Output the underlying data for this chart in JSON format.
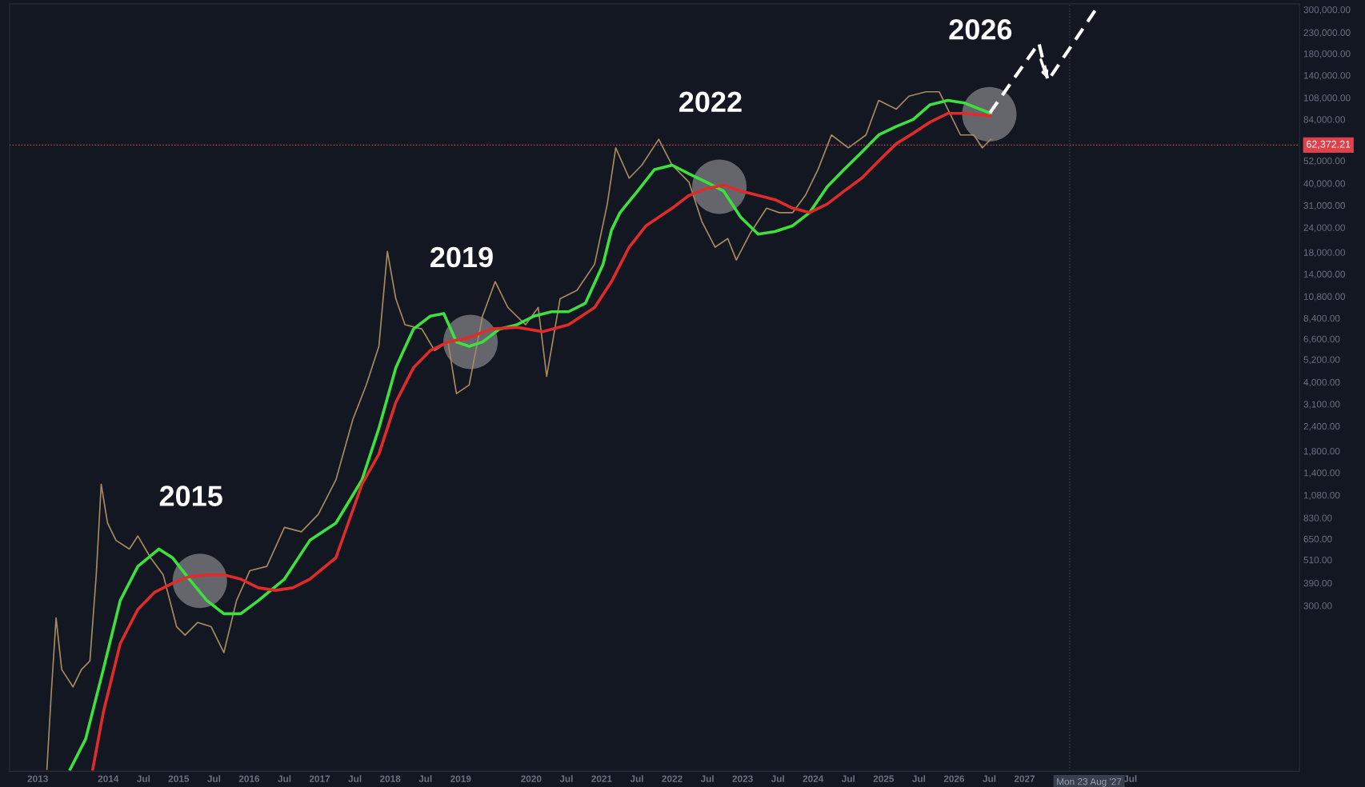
{
  "chart_data": {
    "type": "line",
    "log": "y",
    "grid": false,
    "legend": false,
    "xlim": [
      2012.6,
      2030.9
    ],
    "ylim": [
      44,
      320000
    ],
    "xticks": [
      2013,
      2014,
      {
        "value": 2014.5,
        "label": "Jul"
      },
      2015,
      {
        "value": 2015.5,
        "label": "Jul"
      },
      2016,
      {
        "value": 2016.5,
        "label": "Jul"
      },
      2017,
      {
        "value": 2017.5,
        "label": "Jul"
      },
      2018,
      {
        "value": 2018.5,
        "label": "Jul"
      },
      2019,
      2020,
      {
        "value": 2020.5,
        "label": "Jul"
      },
      2021,
      {
        "value": 2021.5,
        "label": "Jul"
      },
      2022,
      {
        "value": 2022.5,
        "label": "Jul"
      },
      2023,
      {
        "value": 2023.5,
        "label": "Jul"
      },
      2024,
      {
        "value": 2024.5,
        "label": "Jul"
      },
      2025,
      {
        "value": 2025.5,
        "label": "Jul"
      },
      2026,
      {
        "value": 2026.5,
        "label": "Jul"
      },
      2027,
      {
        "value": 2028.5,
        "label": "Jul"
      }
    ],
    "yticks": [
      {
        "value": 300,
        "label": "300.00"
      },
      {
        "value": 390,
        "label": "390.00"
      },
      {
        "value": 510,
        "label": "510.00"
      },
      {
        "value": 650,
        "label": "650.00"
      },
      {
        "value": 830,
        "label": "830.00"
      },
      {
        "value": 1080,
        "label": "1,080.00"
      },
      {
        "value": 1400,
        "label": "1,400.00"
      },
      {
        "value": 1800,
        "label": "1,800.00"
      },
      {
        "value": 2400,
        "label": "2,400.00"
      },
      {
        "value": 3100,
        "label": "3,100.00"
      },
      {
        "value": 4000,
        "label": "4,000.00"
      },
      {
        "value": 5200,
        "label": "5,200.00"
      },
      {
        "value": 6600,
        "label": "6,600.00"
      },
      {
        "value": 8400,
        "label": "8,400.00"
      },
      {
        "value": 10800,
        "label": "10,800.00"
      },
      {
        "value": 14000,
        "label": "14,000.00"
      },
      {
        "value": 18000,
        "label": "18,000.00"
      },
      {
        "value": 24000,
        "label": "24,000.00"
      },
      {
        "value": 31000,
        "label": "31,000.00"
      },
      {
        "value": 40000,
        "label": "40,000.00"
      },
      {
        "value": 52000,
        "label": "52,000.00"
      },
      {
        "value": 84000,
        "label": "84,000.00"
      },
      {
        "value": 108000,
        "label": "108,000.00"
      },
      {
        "value": 140000,
        "label": "140,000.00"
      },
      {
        "value": 180000,
        "label": "180,000.00"
      },
      {
        "value": 230000,
        "label": "230,000.00"
      },
      {
        "value": 300000,
        "label": "300,000.00"
      }
    ],
    "series": [
      {
        "color": "#a88a5e",
        "x": [
          2013.13,
          2013.19,
          2013.26,
          2013.34,
          2013.5,
          2013.62,
          2013.74,
          2013.83,
          2013.9,
          2013.99,
          2014.11,
          2014.3,
          2014.42,
          2014.6,
          2014.78,
          2014.97,
          2015.09,
          2015.27,
          2015.46,
          2015.64,
          2015.82,
          2016.01,
          2016.25,
          2016.5,
          2016.74,
          2016.98,
          2017.23,
          2017.47,
          2017.66,
          2017.84,
          2017.96,
          2018.08,
          2018.21,
          2018.45,
          2018.63,
          2018.82,
          2018.94,
          2019.12,
          2019.31,
          2019.49,
          2019.67,
          2019.92,
          2020.1,
          2020.22,
          2020.41,
          2020.65,
          2020.9,
          2021.08,
          2021.2,
          2021.39,
          2021.57,
          2021.81,
          2022.0,
          2022.24,
          2022.42,
          2022.61,
          2022.79,
          2022.91,
          2023.1,
          2023.34,
          2023.52,
          2023.71,
          2023.89,
          2024.07,
          2024.26,
          2024.5,
          2024.75,
          2024.93,
          2025.18,
          2025.36,
          2025.6,
          2025.79,
          2025.91,
          2026.09,
          2026.28,
          2026.4,
          2026.52
        ],
        "values": [
          45,
          106,
          260,
          143,
          117,
          143,
          158,
          428,
          1224,
          781,
          639,
          578,
          672,
          523,
          428,
          235,
          213,
          247,
          235,
          174,
          318,
          450,
          473,
          743,
          706,
          863,
          1288,
          2592,
          3865,
          6059,
          18200,
          10500,
          7780,
          7396,
          5768,
          6365,
          3499,
          3865,
          8590,
          12820,
          9490,
          7780,
          9490,
          4270,
          10500,
          11590,
          15670,
          31500,
          60400,
          42500,
          49400,
          66700,
          49400,
          40500,
          25800,
          19100,
          21100,
          16450,
          22200,
          30000,
          28500,
          28500,
          34800,
          47000,
          70100,
          60400,
          70100,
          104600,
          94600,
          109900,
          115600,
          115600,
          94600,
          70100,
          70100,
          60400,
          66700
        ]
      },
      {
        "color": "#3ee03e",
        "x": [
          2013.46,
          2013.68,
          2013.93,
          2014.17,
          2014.42,
          2014.72,
          2014.91,
          2015.15,
          2015.4,
          2015.64,
          2015.88,
          2016.13,
          2016.5,
          2016.86,
          2017.23,
          2017.6,
          2017.84,
          2018.08,
          2018.33,
          2018.57,
          2018.76,
          2018.94,
          2019.12,
          2019.31,
          2019.55,
          2019.8,
          2020.04,
          2020.29,
          2020.53,
          2020.77,
          2021.02,
          2021.14,
          2021.26,
          2021.51,
          2021.75,
          2022.0,
          2022.24,
          2022.49,
          2022.73,
          2022.97,
          2023.22,
          2023.46,
          2023.71,
          2023.95,
          2024.2,
          2024.44,
          2024.69,
          2024.93,
          2025.18,
          2025.42,
          2025.66,
          2025.91,
          2026.15,
          2026.52
        ],
        "values": [
          45,
          64,
          143,
          318,
          473,
          578,
          523,
          408,
          318,
          273,
          273,
          318,
          408,
          639,
          781,
          1288,
          2344,
          4721,
          7396,
          8590,
          8850,
          6365,
          6059,
          6365,
          7396,
          7780,
          8590,
          9040,
          9040,
          9980,
          15670,
          23300,
          28500,
          36600,
          47000,
          49400,
          44700,
          40500,
          36600,
          27100,
          22200,
          22900,
          24500,
          28500,
          38500,
          47000,
          57400,
          70100,
          77400,
          83900,
          99500,
          104600,
          101500,
          90000
        ]
      },
      {
        "color": "#e02b2b",
        "x": [
          2013.78,
          2013.93,
          2014.17,
          2014.42,
          2014.66,
          2014.91,
          2015.15,
          2015.4,
          2015.64,
          2015.88,
          2016.13,
          2016.37,
          2016.62,
          2016.86,
          2017.23,
          2017.6,
          2017.84,
          2018.08,
          2018.33,
          2018.57,
          2018.82,
          2019.12,
          2019.43,
          2019.8,
          2020.16,
          2020.53,
          2020.9,
          2021.14,
          2021.39,
          2021.63,
          2022.0,
          2022.24,
          2022.49,
          2022.73,
          2022.97,
          2023.22,
          2023.46,
          2023.71,
          2023.95,
          2024.2,
          2024.44,
          2024.69,
          2024.93,
          2025.18,
          2025.42,
          2025.66,
          2025.91,
          2026.15,
          2026.52
        ],
        "values": [
          45,
          87,
          193,
          287,
          351,
          388,
          420,
          428,
          428,
          408,
          369,
          358,
          369,
          408,
          523,
          1224,
          1738,
          3164,
          4721,
          5768,
          6365,
          6696,
          7396,
          7550,
          7178,
          7780,
          9490,
          12820,
          19100,
          24500,
          30000,
          34800,
          37700,
          39200,
          36600,
          34800,
          33100,
          30000,
          28500,
          31500,
          36600,
          42500,
          51900,
          63400,
          71500,
          81400,
          90000,
          90000,
          87400
        ]
      }
    ],
    "ref_lines": [
      {
        "axis": "y",
        "value": 62372.21,
        "label": "62,372.21",
        "color": "#e0404a",
        "line_style": "dotted"
      },
      {
        "axis": "x",
        "value": 2027.64,
        "label": "Mon 23 Aug '27",
        "color": "#3a3f4d",
        "line_style": "dotted"
      }
    ],
    "annotations": [
      {
        "text": "2015",
        "x": 2015.3,
        "y": 400
      },
      {
        "text": "2019",
        "x": 2019.14,
        "y": 6370
      },
      {
        "text": "2022",
        "x": 2022.67,
        "y": 38500
      },
      {
        "text": "2026",
        "x": 2026.5,
        "y": 89100
      }
    ]
  }
}
